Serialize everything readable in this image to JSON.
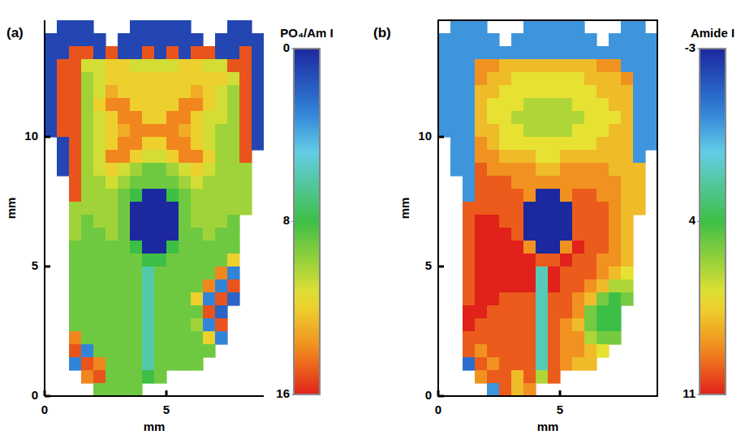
{
  "chart_data": [
    {
      "type": "heatmap",
      "panel_label": "(a)",
      "x_label": "mm",
      "y_label": "mm",
      "xlim": [
        0,
        9
      ],
      "ylim": [
        0,
        14.5
      ],
      "xticks": [
        0,
        5
      ],
      "yticks": [
        0,
        5,
        10
      ],
      "x": [
        0.25,
        0.75,
        1.25,
        1.75,
        2.25,
        2.75,
        3.25,
        3.75,
        4.25,
        4.75,
        5.25,
        5.75,
        6.25,
        6.75,
        7.25,
        7.75,
        8.25,
        8.75
      ],
      "y": [
        14.25,
        13.75,
        13.25,
        12.75,
        12.25,
        11.75,
        11.25,
        10.75,
        10.25,
        9.75,
        9.25,
        8.75,
        8.25,
        7.75,
        7.25,
        6.75,
        6.25,
        5.75,
        5.25,
        4.75,
        4.25,
        3.75,
        3.25,
        2.75,
        2.25,
        1.75,
        1.25,
        0.75,
        0.25
      ],
      "z": [
        [
          null,
          1,
          1,
          1,
          null,
          null,
          null,
          1,
          1,
          1,
          1,
          1,
          null,
          null,
          null,
          1,
          1,
          null
        ],
        [
          1,
          1,
          1,
          1,
          1,
          null,
          1,
          1,
          1,
          1,
          1,
          1,
          1,
          null,
          1,
          1,
          1,
          1
        ],
        [
          1,
          1,
          15,
          15,
          1,
          15,
          1,
          1,
          15,
          1,
          15,
          1,
          15,
          15,
          1,
          1,
          15,
          1
        ],
        [
          1,
          15,
          15,
          11,
          11,
          12,
          12,
          11,
          11,
          11,
          11,
          12,
          12,
          11,
          11,
          15,
          15,
          1
        ],
        [
          1,
          15,
          15,
          10,
          11,
          12,
          12,
          12,
          12,
          12,
          12,
          12,
          12,
          12,
          12,
          11,
          15,
          1
        ],
        [
          1,
          15,
          15,
          10,
          11,
          13,
          12,
          12,
          12,
          12,
          12,
          12,
          13,
          12,
          11,
          10,
          15,
          1
        ],
        [
          1,
          15,
          15,
          10,
          12,
          14,
          14,
          12,
          12,
          12,
          12,
          14,
          14,
          12,
          11,
          10,
          15,
          1
        ],
        [
          1,
          15,
          15,
          10,
          11,
          12,
          14,
          14,
          12,
          12,
          14,
          14,
          12,
          11,
          11,
          10,
          15,
          1
        ],
        [
          1,
          15,
          15,
          10,
          11,
          12,
          13,
          14,
          14,
          14,
          14,
          13,
          12,
          11,
          10,
          10,
          15,
          1
        ],
        [
          null,
          1,
          15,
          10,
          11,
          12,
          14,
          14,
          12,
          12,
          14,
          14,
          12,
          11,
          10,
          10,
          15,
          1
        ],
        [
          null,
          1,
          15,
          10,
          11,
          14,
          14,
          12,
          11,
          11,
          12,
          14,
          14,
          12,
          10,
          10,
          15,
          null
        ],
        [
          null,
          1,
          15,
          10,
          11,
          12,
          11,
          10,
          9,
          9,
          10,
          11,
          12,
          11,
          10,
          10,
          10,
          null
        ],
        [
          null,
          null,
          15,
          10,
          10,
          11,
          10,
          9,
          9,
          9,
          9,
          10,
          11,
          10,
          10,
          10,
          10,
          null
        ],
        [
          null,
          null,
          15,
          10,
          10,
          10,
          9,
          8,
          0,
          0,
          8,
          9,
          10,
          10,
          10,
          10,
          10,
          null
        ],
        [
          null,
          null,
          10,
          10,
          10,
          10,
          9,
          0,
          0,
          0,
          0,
          9,
          10,
          10,
          10,
          10,
          10,
          null
        ],
        [
          null,
          null,
          10,
          9,
          10,
          10,
          9,
          0,
          0,
          0,
          0,
          9,
          10,
          10,
          10,
          9,
          null,
          null
        ],
        [
          null,
          null,
          10,
          9,
          9,
          10,
          9,
          0,
          0,
          0,
          0,
          9,
          9,
          10,
          9,
          9,
          null,
          null
        ],
        [
          null,
          null,
          9,
          9,
          9,
          9,
          9,
          8,
          0,
          0,
          8,
          9,
          9,
          9,
          9,
          9,
          null,
          null
        ],
        [
          null,
          null,
          9,
          9,
          9,
          9,
          9,
          9,
          8,
          8,
          9,
          9,
          9,
          9,
          9,
          12,
          null,
          null
        ],
        [
          null,
          null,
          9,
          9,
          9,
          9,
          9,
          9,
          6,
          9,
          9,
          9,
          9,
          9,
          14,
          3,
          null,
          null
        ],
        [
          null,
          null,
          9,
          9,
          9,
          9,
          9,
          9,
          6,
          9,
          9,
          9,
          9,
          14,
          3,
          15,
          null,
          null
        ],
        [
          null,
          null,
          9,
          9,
          9,
          9,
          9,
          9,
          6,
          9,
          9,
          9,
          12,
          3,
          15,
          2,
          null,
          null
        ],
        [
          null,
          null,
          9,
          9,
          9,
          9,
          9,
          9,
          6,
          9,
          9,
          9,
          9,
          15,
          2,
          null,
          null,
          null
        ],
        [
          null,
          null,
          9,
          9,
          9,
          9,
          9,
          9,
          6,
          9,
          9,
          9,
          10,
          3,
          15,
          null,
          null,
          null
        ],
        [
          null,
          null,
          14,
          9,
          9,
          9,
          9,
          9,
          6,
          9,
          9,
          9,
          9,
          12,
          3,
          null,
          null,
          null
        ],
        [
          null,
          null,
          15,
          3,
          9,
          9,
          9,
          9,
          6,
          9,
          9,
          9,
          9,
          9,
          null,
          null,
          null,
          null
        ],
        [
          null,
          null,
          3,
          15,
          14,
          9,
          9,
          9,
          6,
          9,
          9,
          9,
          9,
          null,
          null,
          null,
          null,
          null
        ],
        [
          null,
          null,
          null,
          14,
          15,
          9,
          9,
          9,
          8,
          9,
          null,
          null,
          null,
          null,
          null,
          null,
          null,
          null
        ],
        [
          null,
          null,
          null,
          null,
          9,
          9,
          9,
          9,
          null,
          null,
          null,
          null,
          null,
          null,
          null,
          null,
          null,
          null
        ]
      ],
      "colorbar": {
        "label": "PO₄/Am I",
        "range": [
          0,
          16
        ],
        "ticks": [
          0,
          8,
          16
        ]
      }
    },
    {
      "type": "heatmap",
      "panel_label": "(b)",
      "x_label": "mm",
      "y_label": "mm",
      "xlim": [
        0,
        9
      ],
      "ylim": [
        0,
        14.5
      ],
      "xticks": [
        0,
        5
      ],
      "yticks": [
        0,
        5,
        10
      ],
      "x": [
        0.25,
        0.75,
        1.25,
        1.75,
        2.25,
        2.75,
        3.25,
        3.75,
        4.25,
        4.75,
        5.25,
        5.75,
        6.25,
        6.75,
        7.25,
        7.75,
        8.25,
        8.75
      ],
      "y": [
        14.25,
        13.75,
        13.25,
        12.75,
        12.25,
        11.75,
        11.25,
        10.75,
        10.25,
        9.75,
        9.25,
        8.75,
        8.25,
        7.75,
        7.25,
        6.75,
        6.25,
        5.75,
        5.25,
        4.75,
        4.25,
        3.75,
        3.25,
        2.75,
        2.25,
        1.75,
        1.25,
        0.75,
        0.25
      ],
      "z": [
        [
          null,
          0,
          0,
          0,
          null,
          null,
          null,
          0,
          0,
          0,
          0,
          0,
          null,
          null,
          null,
          0,
          0,
          null
        ],
        [
          0,
          0,
          0,
          0,
          0,
          null,
          0,
          0,
          0,
          0,
          0,
          0,
          0,
          null,
          0,
          0,
          0,
          0
        ],
        [
          0,
          0,
          0,
          0,
          0,
          0,
          0,
          0,
          0,
          0,
          0,
          0,
          0,
          0,
          0,
          0,
          0,
          0
        ],
        [
          0,
          0,
          0,
          9,
          9,
          8,
          8,
          8,
          8,
          8,
          8,
          8,
          8,
          9,
          9,
          0,
          0,
          0
        ],
        [
          0,
          0,
          0,
          9,
          8,
          8,
          7,
          7,
          7,
          7,
          7,
          7,
          8,
          8,
          8,
          9,
          0,
          0
        ],
        [
          0,
          0,
          0,
          8,
          8,
          7,
          7,
          7,
          7,
          7,
          7,
          7,
          7,
          8,
          8,
          8,
          0,
          0
        ],
        [
          0,
          0,
          0,
          8,
          7,
          7,
          7,
          6,
          6,
          6,
          6,
          7,
          7,
          7,
          8,
          8,
          0,
          0
        ],
        [
          0,
          0,
          0,
          8,
          7,
          7,
          6,
          6,
          6,
          6,
          6,
          6,
          7,
          7,
          7,
          8,
          0,
          0
        ],
        [
          0,
          0,
          0,
          8,
          8,
          7,
          7,
          6,
          6,
          6,
          6,
          7,
          7,
          7,
          8,
          8,
          0,
          0
        ],
        [
          null,
          0,
          0,
          9,
          8,
          7,
          7,
          7,
          7,
          7,
          7,
          7,
          7,
          8,
          8,
          8,
          0,
          0
        ],
        [
          null,
          0,
          0,
          9,
          9,
          8,
          8,
          8,
          7,
          7,
          8,
          8,
          8,
          8,
          8,
          8,
          0,
          null
        ],
        [
          null,
          0,
          0,
          10,
          9,
          9,
          9,
          9,
          8,
          8,
          9,
          9,
          9,
          9,
          8,
          8,
          8,
          null
        ],
        [
          null,
          null,
          0,
          10,
          10,
          10,
          9,
          9,
          9,
          9,
          9,
          9,
          9,
          9,
          9,
          8,
          8,
          null
        ],
        [
          null,
          null,
          0,
          10,
          10,
          10,
          10,
          9,
          -3,
          -3,
          9,
          10,
          10,
          9,
          9,
          8,
          8,
          null
        ],
        [
          null,
          null,
          10,
          10,
          10,
          10,
          10,
          -3,
          -3,
          -3,
          -3,
          10,
          10,
          10,
          9,
          8,
          8,
          null
        ],
        [
          null,
          null,
          10,
          11,
          11,
          10,
          10,
          -3,
          -3,
          -3,
          -3,
          10,
          10,
          10,
          9,
          8,
          null,
          null
        ],
        [
          null,
          null,
          10,
          11,
          11,
          11,
          10,
          -3,
          -3,
          -3,
          -3,
          10,
          10,
          10,
          9,
          8,
          null,
          null
        ],
        [
          null,
          null,
          10,
          11,
          11,
          11,
          11,
          9,
          -3,
          -3,
          9,
          11,
          10,
          10,
          9,
          8,
          null,
          null
        ],
        [
          null,
          null,
          10,
          11,
          11,
          11,
          11,
          11,
          10,
          10,
          11,
          10,
          10,
          9,
          9,
          8,
          null,
          null
        ],
        [
          null,
          null,
          10,
          11,
          11,
          11,
          11,
          11,
          2,
          11,
          10,
          10,
          10,
          9,
          8,
          7,
          null,
          null
        ],
        [
          null,
          null,
          10,
          11,
          11,
          11,
          11,
          11,
          2,
          11,
          10,
          10,
          9,
          8,
          6,
          6,
          null,
          null
        ],
        [
          null,
          null,
          10,
          11,
          11,
          10,
          10,
          10,
          2,
          10,
          10,
          9,
          8,
          5,
          4,
          5,
          null,
          null
        ],
        [
          null,
          null,
          11,
          11,
          10,
          10,
          10,
          10,
          2,
          10,
          10,
          9,
          5,
          4,
          4,
          null,
          null,
          null
        ],
        [
          null,
          null,
          11,
          10,
          10,
          10,
          10,
          10,
          2,
          10,
          9,
          8,
          5,
          4,
          4,
          null,
          null,
          null
        ],
        [
          null,
          null,
          10,
          10,
          10,
          10,
          10,
          10,
          2,
          10,
          9,
          9,
          6,
          5,
          5,
          null,
          null,
          null
        ],
        [
          null,
          null,
          10,
          9,
          10,
          10,
          10,
          10,
          2,
          10,
          9,
          9,
          8,
          7,
          null,
          null,
          null,
          null
        ],
        [
          null,
          null,
          -1,
          10,
          9,
          10,
          10,
          10,
          2,
          10,
          9,
          8,
          8,
          null,
          null,
          null,
          null,
          null
        ],
        [
          null,
          null,
          null,
          9,
          10,
          10,
          8,
          10,
          6,
          10,
          null,
          null,
          null,
          null,
          null,
          null,
          null,
          null
        ],
        [
          null,
          null,
          null,
          null,
          0,
          10,
          8,
          9,
          null,
          null,
          null,
          null,
          null,
          null,
          null,
          null,
          null,
          null
        ]
      ],
      "colorbar": {
        "label": "Amide I",
        "range": [
          -3,
          11
        ],
        "ticks": [
          -3,
          4,
          11
        ]
      }
    }
  ]
}
